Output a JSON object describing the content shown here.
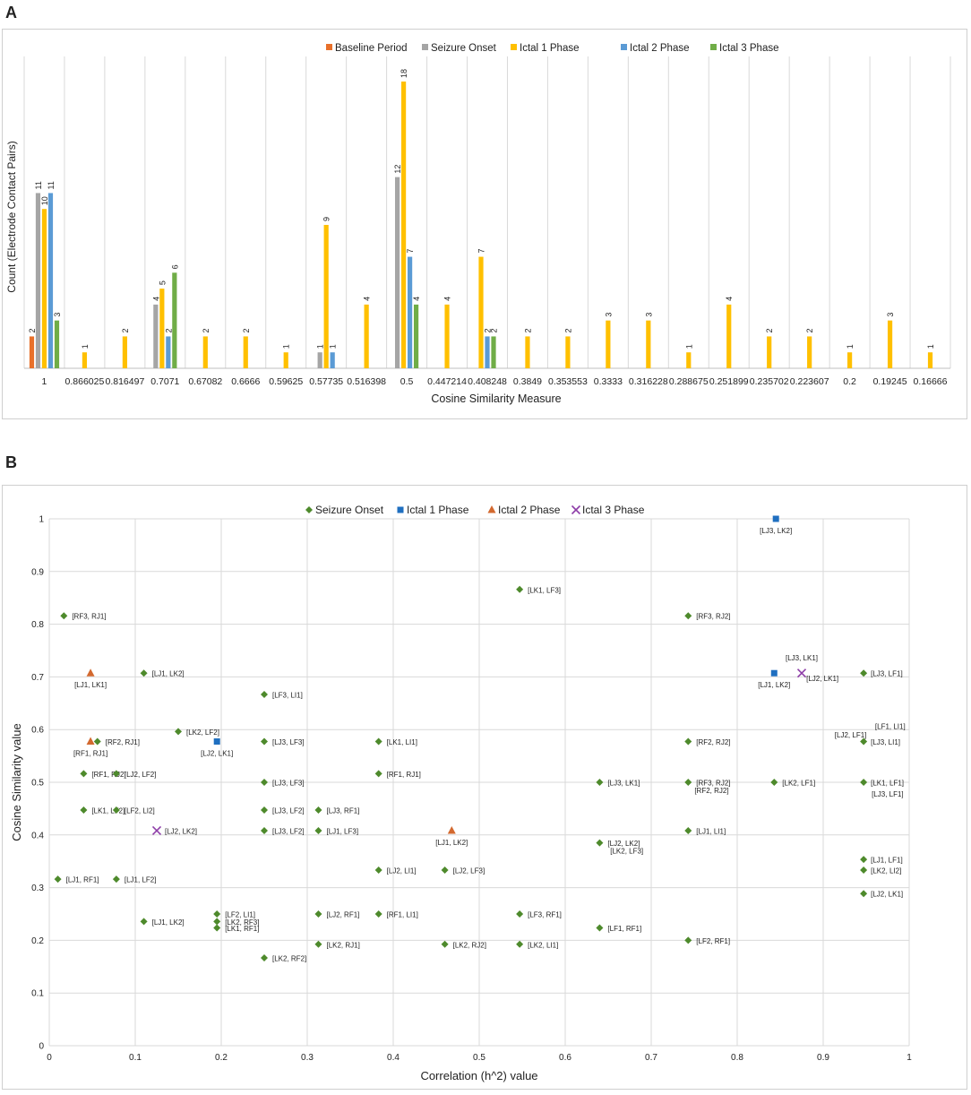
{
  "panels": {
    "a_letter": "A",
    "b_letter": "B"
  },
  "colors": {
    "baseline": "#e8702a",
    "seizure_onset": "#a5a5a5",
    "ictal1": "#ffc000",
    "ictal2": "#5b9bd5",
    "ictal3": "#70ad47",
    "b_seizure": "#4e8a2c",
    "b_ictal1": "#1f6fc0",
    "b_ictal2": "#d3692f",
    "b_ictal3": "#8e3ea8"
  },
  "chart_data": [
    {
      "type": "bar",
      "title": "",
      "xlabel": "Cosine Similarity Measure",
      "ylabel": "Count (Electrode Contact Pairs)",
      "ylim": [
        0,
        18
      ],
      "legend_position": "top",
      "grid": "vertical",
      "categories": [
        "1",
        "0.866025",
        "0.816497",
        "0.7071",
        "0.67082",
        "0.6666",
        "0.59625",
        "0.57735",
        "0.516398",
        "0.5",
        "0.447214",
        "0.408248",
        "0.3849",
        "0.353553",
        "0.3333",
        "0.316228",
        "0.288675",
        "0.251899",
        "0.235702",
        "0.223607",
        "0.2",
        "0.19245",
        "0.16666"
      ],
      "series": [
        {
          "name": "Baseline Period",
          "values": [
            2,
            null,
            null,
            null,
            null,
            null,
            null,
            null,
            null,
            null,
            null,
            null,
            null,
            null,
            null,
            null,
            null,
            null,
            null,
            null,
            null,
            null,
            null
          ]
        },
        {
          "name": "Seizure Onset",
          "values": [
            11,
            null,
            null,
            4,
            null,
            null,
            null,
            1,
            null,
            12,
            null,
            null,
            null,
            null,
            null,
            null,
            null,
            null,
            null,
            null,
            null,
            null,
            null
          ]
        },
        {
          "name": "Ictal 1 Phase",
          "values": [
            10,
            1,
            2,
            5,
            2,
            2,
            1,
            9,
            4,
            18,
            4,
            7,
            2,
            2,
            3,
            3,
            1,
            4,
            2,
            2,
            1,
            3,
            1
          ]
        },
        {
          "name": "Ictal 2 Phase",
          "values": [
            11,
            null,
            null,
            2,
            null,
            null,
            null,
            1,
            null,
            7,
            null,
            2,
            null,
            null,
            null,
            null,
            null,
            null,
            null,
            null,
            null,
            null,
            null
          ]
        },
        {
          "name": "Ictal 3 Phase",
          "values": [
            3,
            null,
            null,
            6,
            null,
            null,
            null,
            null,
            null,
            4,
            null,
            2,
            null,
            null,
            null,
            null,
            null,
            null,
            null,
            null,
            null,
            null,
            null
          ]
        }
      ]
    },
    {
      "type": "scatter",
      "title": "",
      "xlabel": "Correlation (h^2) value",
      "ylabel": "Cosine Similarity value",
      "xlim": [
        0,
        1
      ],
      "ylim": [
        0,
        1
      ],
      "x_ticks": [
        "0",
        "0.1",
        "0.2",
        "0.3",
        "0.4",
        "0.5",
        "0.6",
        "0.7",
        "0.8",
        "0.9",
        "1"
      ],
      "y_ticks": [
        "0",
        "0.1",
        "0.2",
        "0.3",
        "0.4",
        "0.5",
        "0.6",
        "0.7",
        "0.8",
        "0.9",
        "1"
      ],
      "legend_position": "top",
      "grid": "both",
      "series": [
        {
          "name": "Seizure Onset",
          "marker": "diamond",
          "points": [
            {
              "x": 0.017,
              "y": 0.816,
              "label": "[RF3, RJ1]"
            },
            {
              "x": 0.11,
              "y": 0.7071,
              "label": "[LJ1, LK2]"
            },
            {
              "x": 0.25,
              "y": 0.6666,
              "label": "[LF3, LI1]"
            },
            {
              "x": 0.15,
              "y": 0.5963,
              "label": "[LK2, LF2]"
            },
            {
              "x": 0.056,
              "y": 0.5774,
              "label": "[RF2, RJ1]"
            },
            {
              "x": 0.25,
              "y": 0.5774,
              "label": "[LJ3, LF3]"
            },
            {
              "x": 0.383,
              "y": 0.5774,
              "label": "[LK1, LI1]"
            },
            {
              "x": 0.04,
              "y": 0.5164,
              "label": "[RF1, RJ2]"
            },
            {
              "x": 0.078,
              "y": 0.5164,
              "label": "[LJ2, LF2]"
            },
            {
              "x": 0.383,
              "y": 0.5164,
              "label": "[RF1, RJ1]"
            },
            {
              "x": 0.25,
              "y": 0.5,
              "label": "[LJ3, LF3]"
            },
            {
              "x": 0.04,
              "y": 0.4472,
              "label": "[LK1, LF2]"
            },
            {
              "x": 0.078,
              "y": 0.4472,
              "label": "[LF2, LI2]"
            },
            {
              "x": 0.25,
              "y": 0.4472,
              "label": "[LJ3, LF2]"
            },
            {
              "x": 0.313,
              "y": 0.4472,
              "label": "[LJ3, RF1]"
            },
            {
              "x": 0.25,
              "y": 0.4082,
              "label": "[LJ3, LF2]"
            },
            {
              "x": 0.313,
              "y": 0.4082,
              "label": "[LJ1, LF3]"
            },
            {
              "x": 0.01,
              "y": 0.3162,
              "label": "[LJ1, RF1]"
            },
            {
              "x": 0.078,
              "y": 0.3162,
              "label": "[LJ1, LF2]"
            },
            {
              "x": 0.383,
              "y": 0.3333,
              "label": "[LJ2, LI1]"
            },
            {
              "x": 0.46,
              "y": 0.3333,
              "label": "[LJ2, LF3]"
            },
            {
              "x": 0.195,
              "y": 0.25,
              "label": "[LF2, LI1]"
            },
            {
              "x": 0.195,
              "y": 0.2357,
              "label": "[LK2, RF3]"
            },
            {
              "x": 0.195,
              "y": 0.2236,
              "label": "[LK1, RF1]"
            },
            {
              "x": 0.11,
              "y": 0.2357,
              "label": "[LJ1, LK2]"
            },
            {
              "x": 0.313,
              "y": 0.25,
              "label": "[LJ2, RF1]"
            },
            {
              "x": 0.383,
              "y": 0.25,
              "label": "[RF1, LI1]"
            },
            {
              "x": 0.25,
              "y": 0.1667,
              "label": "[LK2, RF2]"
            },
            {
              "x": 0.313,
              "y": 0.1925,
              "label": "[LK2, RJ1]"
            },
            {
              "x": 0.46,
              "y": 0.1925,
              "label": "[LK2, RJ2]"
            },
            {
              "x": 0.547,
              "y": 0.866,
              "label": "[LK1, LF3]"
            },
            {
              "x": 0.547,
              "y": 0.25,
              "label": "[LF3, RF1]"
            },
            {
              "x": 0.547,
              "y": 0.1925,
              "label": "[LK2, LI1]"
            },
            {
              "x": 0.64,
              "y": 0.5,
              "label": "[LJ3, LK1]"
            },
            {
              "x": 0.64,
              "y": 0.3849,
              "label": "[LJ2, LK2]"
            },
            {
              "x": 0.64,
              "y": 0.2236,
              "label": "[LF1, RF1]"
            },
            {
              "x": 0.743,
              "y": 0.816,
              "label": "[RF3, RJ2]"
            },
            {
              "x": 0.743,
              "y": 0.5774,
              "label": "[RF2, RJ2]"
            },
            {
              "x": 0.743,
              "y": 0.5,
              "label": "[RF3, RJ2]"
            },
            {
              "x": 0.743,
              "y": 0.4082,
              "label": "[LJ1, LI1]"
            },
            {
              "x": 0.743,
              "y": 0.2,
              "label": "[LF2, RF1]"
            },
            {
              "x": 0.843,
              "y": 0.5,
              "label": "[LK2, LF1]"
            },
            {
              "x": 0.947,
              "y": 0.7071,
              "label": "[LJ3, LF1]"
            },
            {
              "x": 0.947,
              "y": 0.5774,
              "label": "[LJ3, LI1]"
            },
            {
              "x": 0.947,
              "y": 0.5,
              "label": "[LK1, LF1]"
            },
            {
              "x": 0.947,
              "y": 0.3536,
              "label": "[LJ1, LF1]"
            },
            {
              "x": 0.947,
              "y": 0.3333,
              "label": "[LK2, LI2]"
            },
            {
              "x": 0.947,
              "y": 0.2887,
              "label": "[LJ2, LK1]"
            }
          ]
        },
        {
          "name": "Ictal 1 Phase",
          "marker": "square",
          "points": [
            {
              "x": 0.845,
              "y": 1.0,
              "label": "[LJ3, LK2]"
            },
            {
              "x": 0.843,
              "y": 0.7071,
              "label": "[LJ1, LK2]"
            },
            {
              "x": 0.195,
              "y": 0.5774,
              "label": "[LJ2, LK1]"
            }
          ]
        },
        {
          "name": "Ictal 2 Phase",
          "marker": "triangle",
          "points": [
            {
              "x": 0.048,
              "y": 0.7071,
              "label": "[LJ1, LK1]"
            },
            {
              "x": 0.048,
              "y": 0.5774,
              "label": "[RF1, RJ1]"
            },
            {
              "x": 0.468,
              "y": 0.4082,
              "label": "[LJ1, LK2]"
            }
          ]
        },
        {
          "name": "Ictal 3 Phase",
          "marker": "x",
          "points": [
            {
              "x": 0.875,
              "y": 0.7071,
              "label": "[LJ3, LK1]"
            },
            {
              "x": 0.125,
              "y": 0.4082,
              "label": "[LJ2, LK2]"
            }
          ]
        }
      ],
      "extra_labels": [
        "[RF2, RJ2]",
        "[LJ3, LF1]",
        "[LJ2, LK1]",
        "[LJ2, LF1]",
        "[LF1, LI1]",
        "[LK2, LF3]"
      ]
    }
  ]
}
